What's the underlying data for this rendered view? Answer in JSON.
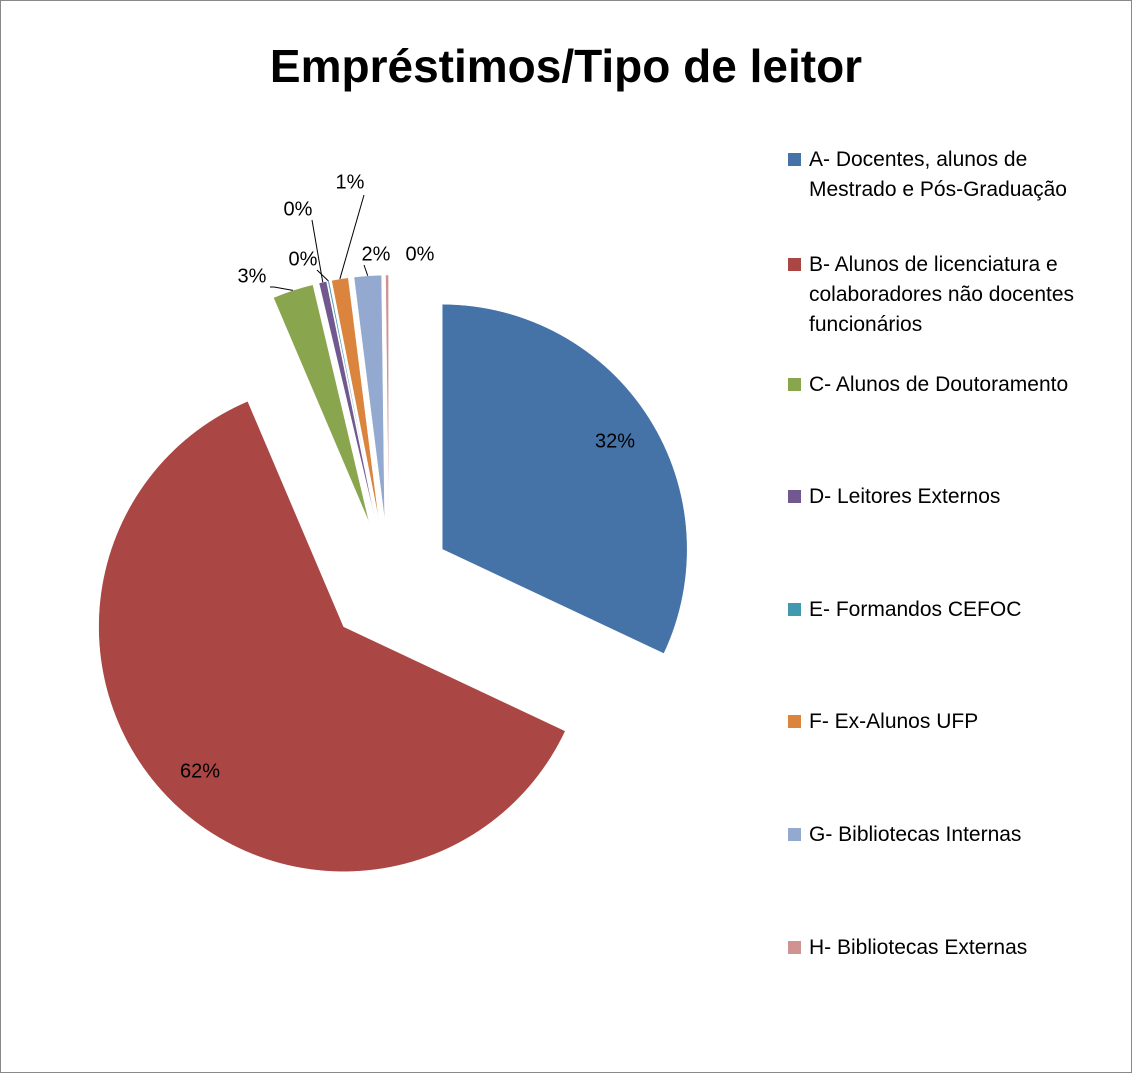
{
  "chart_data": {
    "type": "pie",
    "title": "Empréstimos/Tipo de leitor",
    "categories": [
      "A- Docentes, alunos de Mestrado e Pós-Graduação",
      "B- Alunos de licenciatura e colaboradores não docentes funcionários",
      "C- Alunos de Doutoramento",
      "D- Leitores Externos",
      "E- Formandos CEFOC",
      "F- Ex-Alunos UFP",
      "G- Bibliotecas Internas",
      "H- Bibliotecas Externas"
    ],
    "values": [
      32.0,
      61.6,
      2.7,
      0.5,
      0.1,
      1.1,
      1.8,
      0.2
    ],
    "value_labels": [
      "32%",
      "62%",
      "3%",
      "0%",
      "0%",
      "1%",
      "2%",
      "0%"
    ],
    "colors": [
      "#4572a7",
      "#aa4643",
      "#89a54e",
      "#71588f",
      "#4198af",
      "#db843d",
      "#93a9cf",
      "#d19392"
    ],
    "legend": "right"
  }
}
